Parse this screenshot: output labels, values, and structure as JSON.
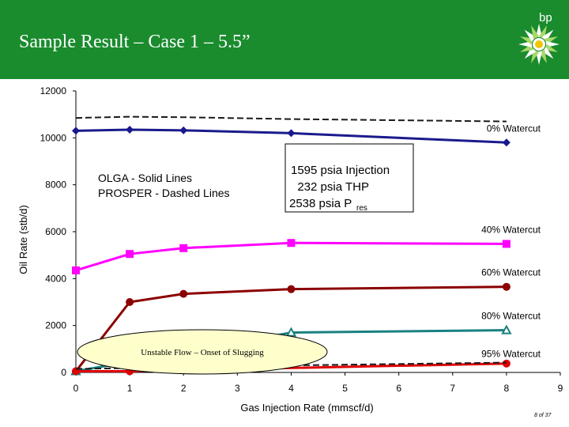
{
  "slide": {
    "title": "Sample Result – Case 1 – 5.5”",
    "brand": "bp",
    "page": "8 of 37"
  },
  "chart_data": {
    "type": "line",
    "title": "",
    "xlabel": "Gas Injection Rate (mmscf/d)",
    "ylabel": "Oil Rate (stb/d)",
    "xlim": [
      0,
      9
    ],
    "ylim": [
      0,
      12000
    ],
    "xticks": [
      0,
      1,
      2,
      3,
      4,
      5,
      6,
      7,
      8,
      9
    ],
    "yticks": [
      0,
      2000,
      4000,
      6000,
      8000,
      10000,
      12000
    ],
    "legend_note": "OLGA - Solid Lines\nPROSPER - Dashed Lines",
    "conditions": [
      "1595 psia Injection",
      "  232 psia THP",
      "2538 psia P",
      "res"
    ],
    "unstable_label": "Unstable Flow – Onset of Slugging",
    "series": [
      {
        "name": "0% Watercut",
        "model": "OLGA",
        "style": "solid",
        "color": "#1a1a8c",
        "marker": "diamond",
        "x": [
          0,
          1,
          2,
          4,
          8
        ],
        "y": [
          10300,
          10350,
          10320,
          10200,
          9800
        ]
      },
      {
        "name": "0% Watercut PROSPER",
        "model": "PROSPER",
        "style": "dashed",
        "color": "#1a1a1a",
        "marker": "none",
        "x": [
          0,
          1,
          2,
          4,
          8
        ],
        "y": [
          10850,
          10900,
          10880,
          10800,
          10700
        ]
      },
      {
        "name": "40% Watercut",
        "model": "OLGA",
        "style": "solid",
        "color": "#ff00ff",
        "marker": "square",
        "x": [
          0,
          1,
          2,
          4,
          8
        ],
        "y": [
          4350,
          5050,
          5300,
          5520,
          5480
        ]
      },
      {
        "name": "60% Watercut",
        "model": "OLGA",
        "style": "solid",
        "color": "#8b0000",
        "marker": "circle",
        "x": [
          0,
          1,
          2,
          4,
          8
        ],
        "y": [
          50,
          3000,
          3350,
          3550,
          3650
        ]
      },
      {
        "name": "80% Watercut",
        "model": "OLGA",
        "style": "solid",
        "color": "#1a8080",
        "marker": "triangle",
        "x": [
          0,
          4,
          8
        ],
        "y": [
          50,
          1700,
          1800
        ]
      },
      {
        "name": "95% Watercut",
        "model": "OLGA",
        "style": "solid",
        "color": "#e00000",
        "marker": "circle",
        "x": [
          0,
          1,
          8
        ],
        "y": [
          50,
          50,
          380
        ]
      },
      {
        "name": "95% Watercut PROSPER",
        "model": "PROSPER",
        "style": "dashed",
        "color": "#1a1a1a",
        "marker": "none",
        "x": [
          0,
          4,
          8
        ],
        "y": [
          150,
          300,
          420
        ]
      }
    ],
    "series_labels": [
      {
        "text": "0% Watercut",
        "series": 0
      },
      {
        "text": "40% Watercut",
        "series": 2
      },
      {
        "text": "60% Watercut",
        "series": 3
      },
      {
        "text": "80% Watercut",
        "series": 4
      },
      {
        "text": "95% Watercut",
        "series": 5
      }
    ]
  }
}
